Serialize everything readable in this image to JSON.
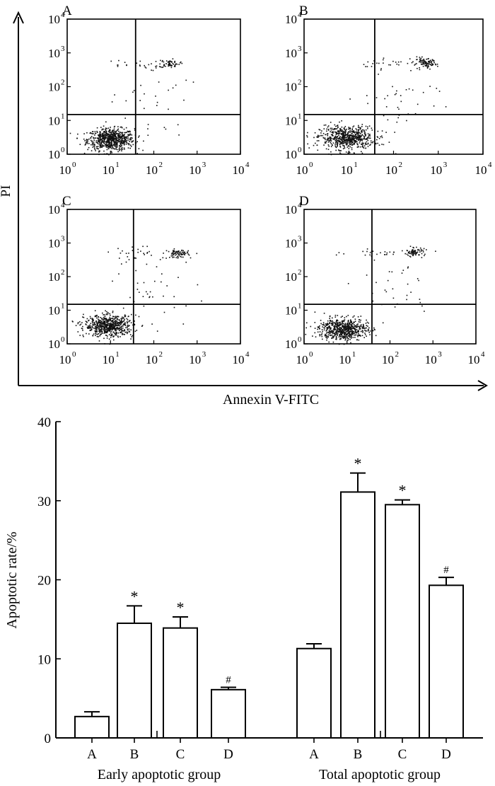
{
  "chart_data": [
    {
      "type": "scatter",
      "id": "flow-cytometry",
      "xlabel": "Annexin V-FITC",
      "ylabel": "PI",
      "scale": "log10",
      "xlim": [
        1,
        10000
      ],
      "ylim": [
        1,
        10000
      ],
      "tick_labels": [
        "10",
        "10",
        "10",
        "10",
        "10"
      ],
      "tick_exponents": [
        "0",
        "1",
        "2",
        "3",
        "4"
      ],
      "panels": [
        {
          "label": "A",
          "gate_x": 38,
          "gate_y": 15,
          "clusters": [
            {
              "cx": 1.0,
              "cy": 0.45,
              "sx": 0.27,
              "sy": 0.16,
              "n": 700
            },
            {
              "cx": 2.35,
              "cy": 2.7,
              "sx": 0.12,
              "sy": 0.06,
              "n": 60
            },
            {
              "cx": 1.5,
              "cy": 2.65,
              "sx": 0.4,
              "sy": 0.08,
              "n": 24
            },
            {
              "cx": 1.9,
              "cy": 1.6,
              "sx": 0.45,
              "sy": 0.55,
              "n": 30
            }
          ]
        },
        {
          "label": "B",
          "gate_x": 38,
          "gate_y": 15,
          "clusters": [
            {
              "cx": 0.95,
              "cy": 0.5,
              "sx": 0.3,
              "sy": 0.17,
              "n": 650
            },
            {
              "cx": 2.7,
              "cy": 2.7,
              "sx": 0.13,
              "sy": 0.07,
              "n": 90
            },
            {
              "cx": 1.9,
              "cy": 2.7,
              "sx": 0.45,
              "sy": 0.08,
              "n": 30
            },
            {
              "cx": 2.1,
              "cy": 1.5,
              "sx": 0.5,
              "sy": 0.6,
              "n": 40
            }
          ]
        },
        {
          "label": "C",
          "gate_x": 34,
          "gate_y": 15,
          "clusters": [
            {
              "cx": 0.95,
              "cy": 0.55,
              "sx": 0.28,
              "sy": 0.16,
              "n": 650
            },
            {
              "cx": 2.55,
              "cy": 2.7,
              "sx": 0.12,
              "sy": 0.06,
              "n": 75
            },
            {
              "cx": 1.7,
              "cy": 2.7,
              "sx": 0.45,
              "sy": 0.09,
              "n": 30
            },
            {
              "cx": 2.0,
              "cy": 1.6,
              "sx": 0.5,
              "sy": 0.55,
              "n": 40
            }
          ]
        },
        {
          "label": "D",
          "gate_x": 38,
          "gate_y": 15,
          "clusters": [
            {
              "cx": 0.9,
              "cy": 0.45,
              "sx": 0.28,
              "sy": 0.16,
              "n": 650
            },
            {
              "cx": 2.55,
              "cy": 2.75,
              "sx": 0.12,
              "sy": 0.06,
              "n": 70
            },
            {
              "cx": 1.8,
              "cy": 2.7,
              "sx": 0.45,
              "sy": 0.08,
              "n": 28
            },
            {
              "cx": 2.1,
              "cy": 1.7,
              "sx": 0.45,
              "sy": 0.55,
              "n": 30
            }
          ]
        }
      ]
    },
    {
      "type": "bar",
      "id": "apoptotic-rate",
      "ylabel": "Apoptotic rate/%",
      "ylim": [
        0,
        40
      ],
      "yticks": [
        "0",
        "10",
        "20",
        "30",
        "40"
      ],
      "groups": [
        {
          "name": "Early apoptotic group",
          "categories": [
            "A",
            "B",
            "C",
            "D"
          ],
          "values": [
            2.7,
            14.5,
            13.9,
            6.1
          ],
          "errors": [
            0.6,
            2.2,
            1.4,
            0.3
          ],
          "markers": [
            "",
            "*",
            "*",
            "#"
          ]
        },
        {
          "name": "Total apoptotic group",
          "categories": [
            "A",
            "B",
            "C",
            "D"
          ],
          "values": [
            11.3,
            31.1,
            29.5,
            19.3
          ],
          "errors": [
            0.6,
            2.4,
            0.6,
            1.0
          ],
          "markers": [
            "",
            "*",
            "*",
            "#"
          ]
        }
      ]
    }
  ]
}
